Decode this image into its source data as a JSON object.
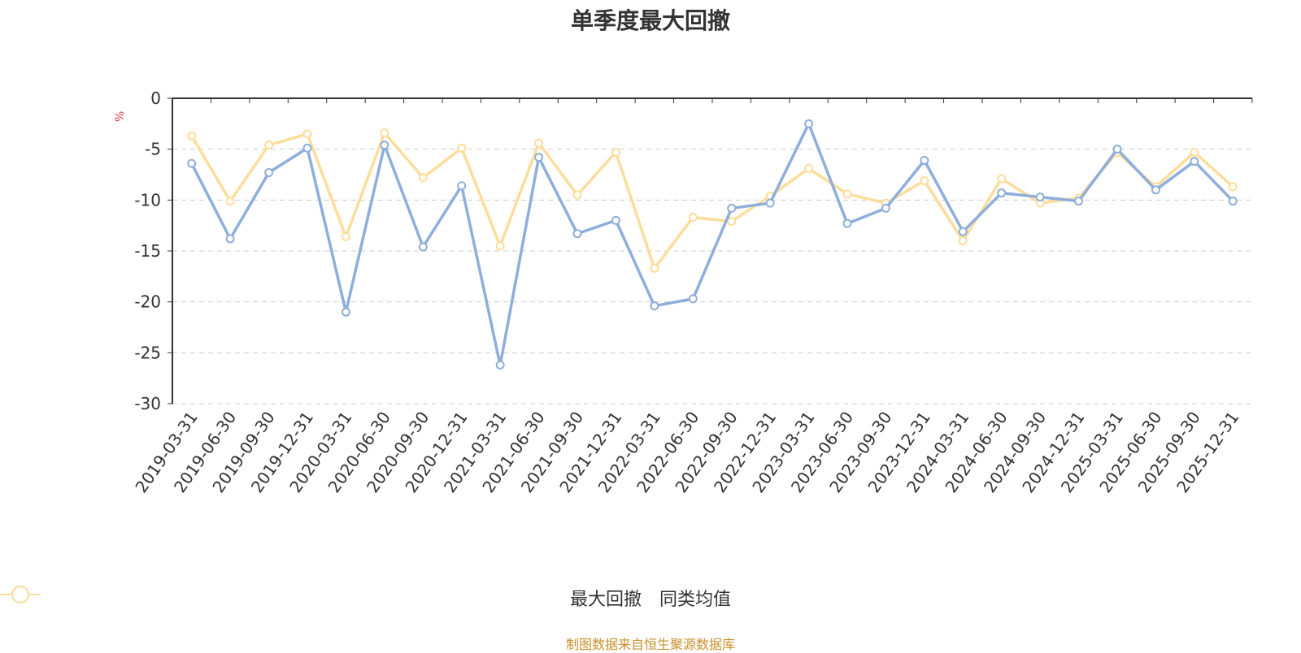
{
  "title": "单季度最大回撤",
  "unit_label": "%",
  "footer": "制图数据来自恒生聚源数据库",
  "colors": {
    "series_drawdown": "#8eaedb",
    "series_peer_avg": "#fddd9c",
    "grid": "#cccccc",
    "axis": "#333333",
    "unit": "#e4393c",
    "footer": "#c8912c"
  },
  "legend": [
    {
      "name": "最大回撤",
      "color": "#8eaedb"
    },
    {
      "name": "同类均值",
      "color": "#fddd9c"
    }
  ],
  "chart_data": {
    "type": "line",
    "title": "单季度最大回撤",
    "ylabel": "%",
    "ylim": [
      -30,
      0
    ],
    "yticks": [
      0,
      -5,
      -10,
      -15,
      -20,
      -25,
      -30
    ],
    "grid": true,
    "legend_position": "bottom",
    "categories": [
      "2019-03-31",
      "2019-06-30",
      "2019-09-30",
      "2019-12-31",
      "2020-03-31",
      "2020-06-30",
      "2020-09-30",
      "2020-12-31",
      "2021-03-31",
      "2021-06-30",
      "2021-09-30",
      "2021-12-31",
      "2022-03-31",
      "2022-06-30",
      "2022-09-30",
      "2022-12-31",
      "2023-03-31",
      "2023-06-30",
      "2023-09-30",
      "2023-12-31",
      "2024-03-31",
      "2024-06-30",
      "2024-09-30",
      "2024-12-31",
      "2025-03-31",
      "2025-06-30",
      "2025-09-30",
      "2025-12-31"
    ],
    "series": [
      {
        "name": "最大回撤",
        "color": "#8eaedb",
        "values": [
          -6.4,
          -13.8,
          -7.3,
          -4.9,
          -21.0,
          -4.6,
          -14.6,
          -8.6,
          -26.2,
          -5.8,
          -13.3,
          -12.0,
          -20.4,
          -19.7,
          -10.8,
          -10.3,
          -2.5,
          -12.3,
          -10.8,
          -6.1,
          -13.1,
          -9.3,
          -9.7,
          -10.1,
          -5.0,
          -9.0,
          -6.2,
          -10.1
        ]
      },
      {
        "name": "同类均值",
        "color": "#fddd9c",
        "values": [
          -3.7,
          -10.1,
          -4.6,
          -3.5,
          -13.6,
          -3.4,
          -7.8,
          -4.9,
          -14.5,
          -4.4,
          -9.5,
          -5.3,
          -16.7,
          -11.7,
          -12.1,
          -9.6,
          -6.9,
          -9.4,
          -10.3,
          -8.1,
          -14.0,
          -7.9,
          -10.3,
          -9.8,
          -5.3,
          -8.7,
          -5.3,
          -8.7
        ]
      }
    ]
  }
}
